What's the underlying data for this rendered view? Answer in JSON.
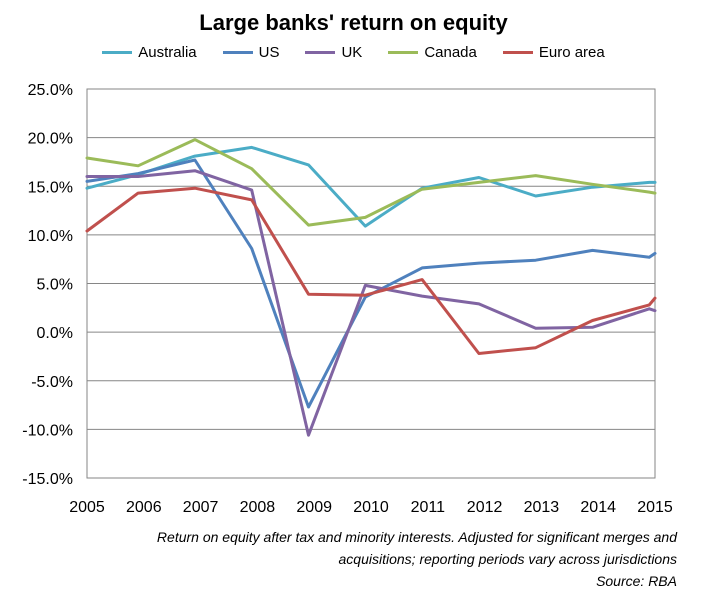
{
  "chart_data": {
    "type": "line",
    "title": "Large banks' return on equity",
    "x": [
      "2005",
      "2006",
      "2007",
      "2008",
      "2009",
      "2010",
      "2011",
      "2012",
      "2013",
      "2014",
      "2015"
    ],
    "xticks": [
      "2005",
      "2006",
      "2007",
      "2008",
      "2009",
      "2010",
      "2011",
      "2012",
      "2013",
      "2014",
      "2015"
    ],
    "yticks": [
      "25.0%",
      "20.0%",
      "15.0%",
      "10.0%",
      "5.0%",
      "0.0%",
      "-5.0%",
      "-10.0%",
      "-15.0%"
    ],
    "ylim": [
      -15,
      25
    ],
    "grid": true,
    "legend_position": "top",
    "series": [
      {
        "name": "Australia",
        "color": "#4BACC6",
        "points": [
          [
            2005.0,
            14.8
          ],
          [
            2005.9,
            16.2
          ],
          [
            2006.9,
            18.1
          ],
          [
            2007.9,
            19.0
          ],
          [
            2008.9,
            17.2
          ],
          [
            2009.9,
            10.9
          ],
          [
            2010.9,
            14.8
          ],
          [
            2011.9,
            15.9
          ],
          [
            2012.9,
            14.0
          ],
          [
            2013.9,
            14.9
          ],
          [
            2014.9,
            15.4
          ],
          [
            2015.0,
            15.4
          ]
        ]
      },
      {
        "name": "US",
        "color": "#4F81BD",
        "points": [
          [
            2005.0,
            15.5
          ],
          [
            2005.9,
            16.3
          ],
          [
            2006.9,
            17.7
          ],
          [
            2007.9,
            8.6
          ],
          [
            2008.9,
            -7.7
          ],
          [
            2009.9,
            3.6
          ],
          [
            2010.9,
            6.6
          ],
          [
            2011.9,
            7.1
          ],
          [
            2012.9,
            7.4
          ],
          [
            2013.9,
            8.4
          ],
          [
            2014.9,
            7.7
          ],
          [
            2015.0,
            8.1
          ]
        ]
      },
      {
        "name": "UK",
        "color": "#8064A2",
        "points": [
          [
            2005.0,
            16.0
          ],
          [
            2005.9,
            16.0
          ],
          [
            2006.9,
            16.6
          ],
          [
            2007.9,
            14.6
          ],
          [
            2008.9,
            -10.6
          ],
          [
            2009.9,
            4.8
          ],
          [
            2010.9,
            3.7
          ],
          [
            2011.9,
            2.9
          ],
          [
            2012.9,
            0.4
          ],
          [
            2013.9,
            0.5
          ],
          [
            2014.9,
            2.4
          ],
          [
            2015.0,
            2.2
          ]
        ]
      },
      {
        "name": "Canada",
        "color": "#9BBB59",
        "points": [
          [
            2005.0,
            17.9
          ],
          [
            2005.9,
            17.1
          ],
          [
            2006.9,
            19.8
          ],
          [
            2007.9,
            16.8
          ],
          [
            2008.9,
            11.0
          ],
          [
            2009.9,
            11.8
          ],
          [
            2010.9,
            14.7
          ],
          [
            2011.9,
            15.4
          ],
          [
            2012.9,
            16.1
          ],
          [
            2013.9,
            15.2
          ],
          [
            2014.9,
            14.4
          ],
          [
            2015.0,
            14.3
          ]
        ]
      },
      {
        "name": "Euro area",
        "color": "#C0504D",
        "points": [
          [
            2005.0,
            10.4
          ],
          [
            2005.9,
            14.3
          ],
          [
            2006.9,
            14.8
          ],
          [
            2007.9,
            13.6
          ],
          [
            2008.9,
            3.9
          ],
          [
            2009.9,
            3.8
          ],
          [
            2010.9,
            5.4
          ],
          [
            2011.9,
            -2.2
          ],
          [
            2012.9,
            -1.6
          ],
          [
            2013.9,
            1.2
          ],
          [
            2014.9,
            2.8
          ],
          [
            2015.0,
            3.5
          ]
        ]
      }
    ]
  },
  "note": {
    "line1": "Return on equity after tax and minority interests. Adjusted for significant merges and",
    "line2": "acquisitions;  reporting periods vary across jurisdictions",
    "line3": "Source: RBA"
  }
}
